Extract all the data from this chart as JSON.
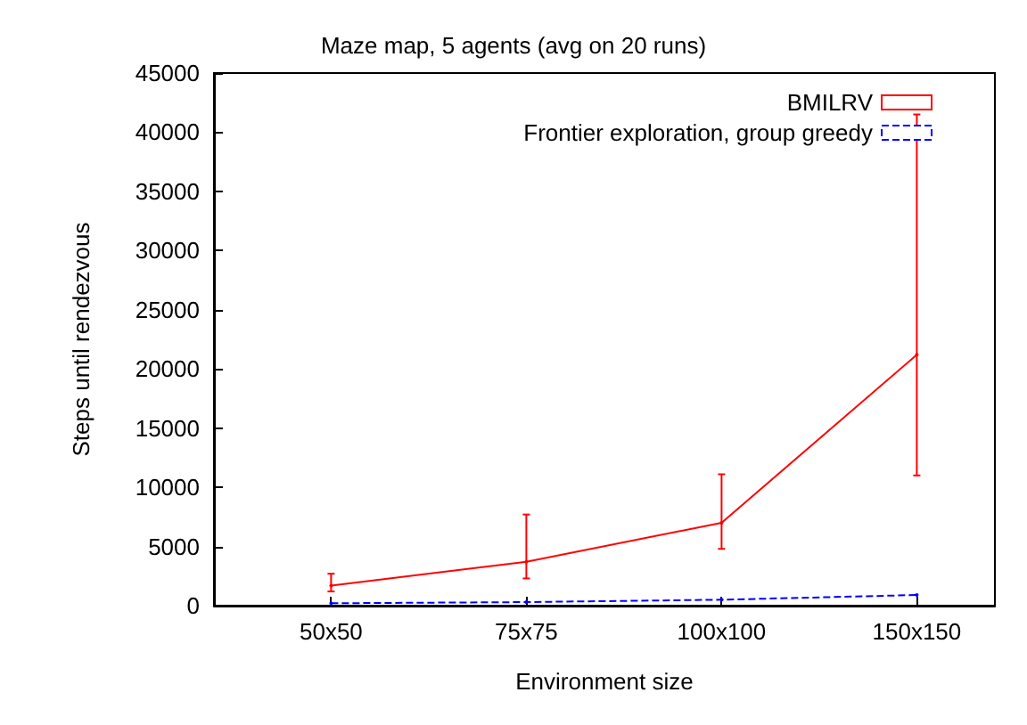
{
  "chart_data": {
    "type": "line",
    "title": "Maze map, 5 agents (avg on 20 runs)",
    "xlabel": "Environment size",
    "ylabel": "Steps until rendezvous",
    "categories": [
      "50x50",
      "75x75",
      "100x100",
      "150x150"
    ],
    "series": [
      {
        "name": "BMILRV",
        "color": "#ff0000",
        "values": [
          1700,
          3700,
          7000,
          21200
        ],
        "errors": [
          [
            1200,
            2700
          ],
          [
            2300,
            7700
          ],
          [
            4800,
            11100
          ],
          [
            11000,
            41500
          ]
        ],
        "line_style": "solid"
      },
      {
        "name": "Frontier exploration, group greedy",
        "color": "#0000ff",
        "values": [
          200,
          300,
          500,
          900
        ],
        "line_style": "dashed"
      }
    ],
    "ylim": [
      0,
      45000
    ],
    "yticks": [
      0,
      5000,
      10000,
      15000,
      20000,
      25000,
      30000,
      35000,
      40000,
      45000
    ],
    "grid": false,
    "legend": "top right"
  }
}
